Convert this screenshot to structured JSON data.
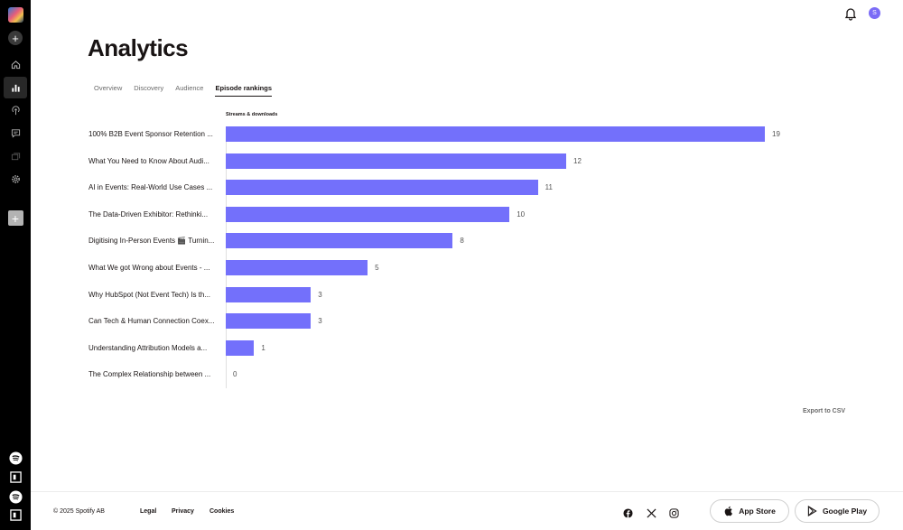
{
  "header": {
    "title": "Analytics",
    "user_initial": "S"
  },
  "tabs": [
    {
      "label": "Overview",
      "active": false
    },
    {
      "label": "Discovery",
      "active": false
    },
    {
      "label": "Audience",
      "active": false
    },
    {
      "label": "Episode rankings",
      "active": true
    }
  ],
  "chart_data": {
    "type": "bar",
    "orientation": "horizontal",
    "metric_label": "Streams & downloads",
    "categories": [
      "100% B2B Event Sponsor Retention ...",
      "What You Need to Know About Audi...",
      "AI in Events: Real-World Use Cases ...",
      "The Data-Driven Exhibitor: Rethinki...",
      "Digitising In-Person Events 🎬 Turnin...",
      "What We got Wrong about Events - ...",
      "Why HubSpot (Not Event Tech) Is th...",
      "Can Tech & Human Connection Coex...",
      "Understanding Attribution Models a...",
      "The Complex Relationship between ..."
    ],
    "values": [
      19,
      12,
      11,
      10,
      8,
      5,
      3,
      3,
      1,
      0
    ],
    "max": 19,
    "bar_color": "#7370fb"
  },
  "actions": {
    "export_label": "Export to CSV"
  },
  "footer": {
    "copyright": "© 2025 Spotify AB",
    "links": [
      "Legal",
      "Privacy",
      "Cookies"
    ],
    "social_icons": [
      "facebook-icon",
      "x-icon",
      "instagram-icon"
    ],
    "app_store_label": "App Store",
    "google_play_label": "Google Play"
  },
  "sidebar": {
    "icons": [
      "show-cover",
      "add",
      "home",
      "analytics",
      "podcast",
      "comments",
      "episodes",
      "settings",
      "add-show",
      "spotify",
      "spotify-for-creators",
      "spotify",
      "spotify-for-creators"
    ]
  }
}
